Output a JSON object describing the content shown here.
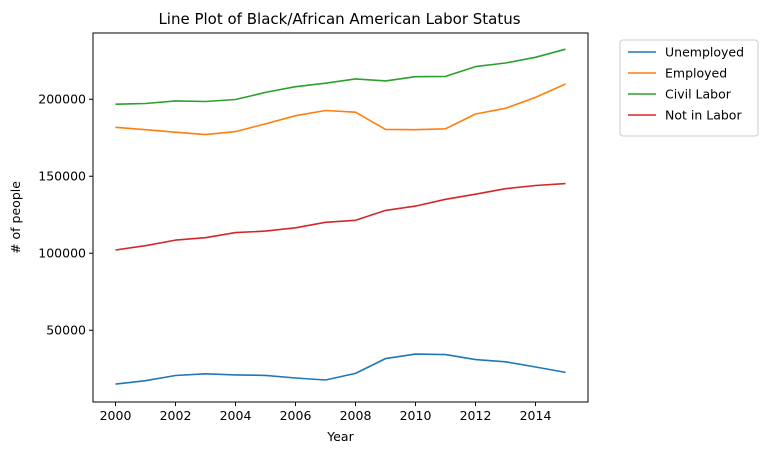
{
  "chart_data": {
    "type": "line",
    "title": "Line Plot of Black/African American Labor Status",
    "xlabel": "Year",
    "ylabel": "# of people",
    "x": [
      2000,
      2001,
      2002,
      2003,
      2004,
      2005,
      2006,
      2007,
      2008,
      2009,
      2010,
      2011,
      2012,
      2013,
      2014,
      2015
    ],
    "xlim": [
      1999.25,
      2015.75
    ],
    "ylim": [
      3400,
      243000
    ],
    "x_ticks": [
      "2000",
      "2002",
      "2004",
      "2006",
      "2008",
      "2010",
      "2012",
      "2014"
    ],
    "y_ticks": [
      "50000",
      "100000",
      "150000",
      "200000"
    ],
    "grid": false,
    "legend_position": "outside-upper-right",
    "series": [
      {
        "name": "Unemployed",
        "color": "#1f77b4",
        "values": [
          15000,
          17200,
          20600,
          21700,
          21000,
          20700,
          19000,
          17700,
          22000,
          31600,
          34500,
          34200,
          30900,
          29500,
          26100,
          22600
        ]
      },
      {
        "name": "Employed",
        "color": "#ff7f0e",
        "values": [
          181800,
          180200,
          178600,
          177000,
          179000,
          184000,
          189300,
          192700,
          191600,
          180400,
          180200,
          180800,
          190400,
          194100,
          201200,
          209900
        ]
      },
      {
        "name": "Civil Labor",
        "color": "#2ca02c",
        "values": [
          196800,
          197200,
          198900,
          198500,
          199800,
          204400,
          208100,
          210400,
          213200,
          211900,
          214600,
          214800,
          221200,
          223500,
          227200,
          232500
        ]
      },
      {
        "name": "Not in Labor",
        "color": "#d62728",
        "values": [
          102100,
          104900,
          108500,
          110100,
          113400,
          114400,
          116500,
          120100,
          121400,
          127800,
          130600,
          135000,
          138300,
          141900,
          144000,
          145200
        ]
      }
    ]
  }
}
